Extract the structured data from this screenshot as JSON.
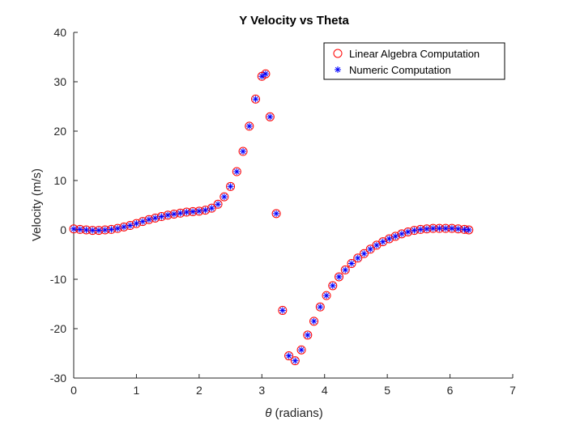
{
  "chart_data": {
    "type": "scatter",
    "title": "Y Velocity vs Theta",
    "xlabel_symbol": "θ",
    "xlabel_text": " (radians)",
    "ylabel": "Velocity (m/s)",
    "xlim": [
      0,
      7
    ],
    "ylim": [
      -30,
      40
    ],
    "xticks": [
      "0",
      "1",
      "2",
      "3",
      "4",
      "5",
      "6",
      "7"
    ],
    "yticks": [
      "-30",
      "-20",
      "-10",
      "0",
      "10",
      "20",
      "30",
      "40"
    ],
    "grid": false,
    "legend_position": "top-right",
    "x": [
      0.0,
      0.1,
      0.2,
      0.3,
      0.4,
      0.5,
      0.6,
      0.7,
      0.8,
      0.9,
      1.0,
      1.1,
      1.2,
      1.3,
      1.4,
      1.5,
      1.6,
      1.7,
      1.8,
      1.9,
      2.0,
      2.1,
      2.2,
      2.3,
      2.4,
      2.5,
      2.6,
      2.7,
      2.8,
      2.9,
      3.0,
      3.06,
      3.13,
      3.23,
      3.33,
      3.43,
      3.53,
      3.63,
      3.73,
      3.83,
      3.93,
      4.03,
      4.13,
      4.23,
      4.33,
      4.43,
      4.53,
      4.63,
      4.73,
      4.83,
      4.93,
      5.03,
      5.13,
      5.23,
      5.33,
      5.43,
      5.53,
      5.63,
      5.73,
      5.83,
      5.93,
      6.03,
      6.13,
      6.23,
      6.3
    ],
    "series": [
      {
        "name": "Linear Algebra Computation",
        "marker": "circle",
        "color": "#ff0000",
        "values": [
          0.2,
          0.1,
          0.0,
          -0.1,
          -0.1,
          0.0,
          0.1,
          0.3,
          0.6,
          0.9,
          1.3,
          1.7,
          2.1,
          2.4,
          2.7,
          3.0,
          3.2,
          3.4,
          3.6,
          3.7,
          3.8,
          4.0,
          4.4,
          5.2,
          6.7,
          8.8,
          11.8,
          15.9,
          21.0,
          26.5,
          31.1,
          31.6,
          22.9,
          3.3,
          -16.3,
          -25.5,
          -26.5,
          -24.3,
          -21.3,
          -18.5,
          -15.6,
          -13.3,
          -11.3,
          -9.5,
          -8.1,
          -6.8,
          -5.7,
          -4.8,
          -3.9,
          -3.1,
          -2.4,
          -1.8,
          -1.3,
          -0.8,
          -0.4,
          -0.1,
          0.1,
          0.2,
          0.3,
          0.3,
          0.3,
          0.3,
          0.2,
          0.1,
          0.0
        ]
      },
      {
        "name": "Numeric Computation",
        "marker": "asterisk",
        "color": "#0000ff",
        "values": [
          0.2,
          0.1,
          0.0,
          -0.1,
          -0.1,
          0.0,
          0.1,
          0.3,
          0.6,
          0.9,
          1.3,
          1.7,
          2.1,
          2.4,
          2.7,
          3.0,
          3.2,
          3.4,
          3.6,
          3.7,
          3.8,
          4.0,
          4.4,
          5.2,
          6.7,
          8.8,
          11.8,
          15.9,
          21.0,
          26.5,
          31.1,
          31.6,
          22.9,
          3.3,
          -16.3,
          -25.5,
          -26.5,
          -24.3,
          -21.3,
          -18.5,
          -15.6,
          -13.3,
          -11.3,
          -9.5,
          -8.1,
          -6.8,
          -5.7,
          -4.8,
          -3.9,
          -3.1,
          -2.4,
          -1.8,
          -1.3,
          -0.8,
          -0.4,
          -0.1,
          0.1,
          0.2,
          0.3,
          0.3,
          0.3,
          0.3,
          0.2,
          0.1,
          0.0
        ]
      }
    ]
  }
}
